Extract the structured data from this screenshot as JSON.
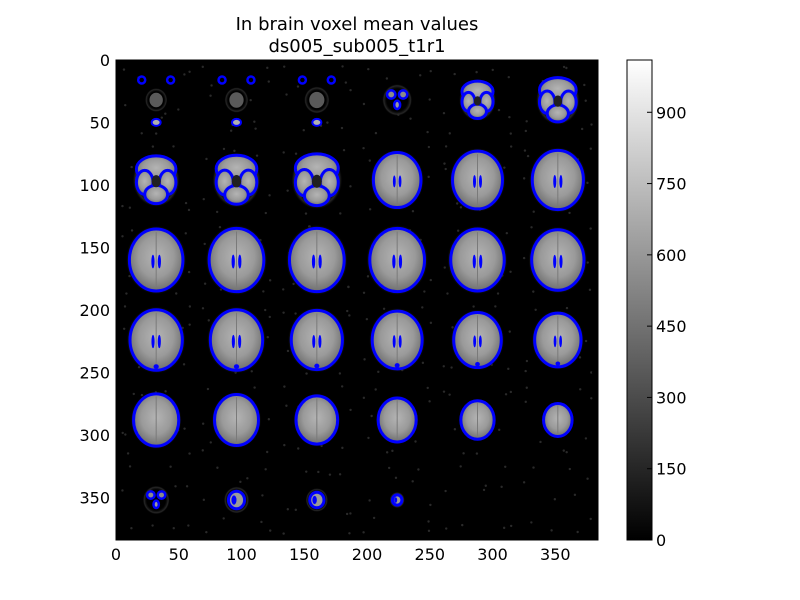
{
  "chart_data": {
    "type": "heatmap",
    "title": "In brain voxel mean values",
    "subtitle": "ds005_sub005_t1r1",
    "xlim": [
      0,
      384
    ],
    "ylim": [
      384,
      0
    ],
    "x_ticks": [
      0,
      50,
      100,
      150,
      200,
      250,
      300,
      350
    ],
    "y_ticks": [
      0,
      50,
      100,
      150,
      200,
      250,
      300,
      350
    ],
    "colormap": "gray",
    "overlay_color": "#0000ff",
    "colorbar": {
      "ticks": [
        0,
        150,
        300,
        450,
        600,
        750,
        900
      ],
      "range": [
        0,
        1010
      ]
    },
    "grid": false,
    "mosaic": {
      "rows": 6,
      "cols": 6,
      "tile_size": 64,
      "slices": [
        {
          "row": 0,
          "col": 0,
          "brain": 0.3
        },
        {
          "row": 0,
          "col": 1,
          "brain": 0.32
        },
        {
          "row": 0,
          "col": 2,
          "brain": 0.34
        },
        {
          "row": 0,
          "col": 3,
          "brain": 0.4
        },
        {
          "row": 0,
          "col": 4,
          "brain": 0.55
        },
        {
          "row": 0,
          "col": 5,
          "brain": 0.65
        },
        {
          "row": 1,
          "col": 0,
          "brain": 0.7
        },
        {
          "row": 1,
          "col": 1,
          "brain": 0.72
        },
        {
          "row": 1,
          "col": 2,
          "brain": 0.76
        },
        {
          "row": 1,
          "col": 3,
          "brain": 0.8
        },
        {
          "row": 1,
          "col": 4,
          "brain": 0.84
        },
        {
          "row": 1,
          "col": 5,
          "brain": 0.86
        },
        {
          "row": 2,
          "col": 0,
          "brain": 0.9
        },
        {
          "row": 2,
          "col": 1,
          "brain": 0.92
        },
        {
          "row": 2,
          "col": 2,
          "brain": 0.92
        },
        {
          "row": 2,
          "col": 3,
          "brain": 0.92
        },
        {
          "row": 2,
          "col": 4,
          "brain": 0.9
        },
        {
          "row": 2,
          "col": 5,
          "brain": 0.88
        },
        {
          "row": 3,
          "col": 0,
          "brain": 0.88
        },
        {
          "row": 3,
          "col": 1,
          "brain": 0.88
        },
        {
          "row": 3,
          "col": 2,
          "brain": 0.86
        },
        {
          "row": 3,
          "col": 3,
          "brain": 0.84
        },
        {
          "row": 3,
          "col": 4,
          "brain": 0.8
        },
        {
          "row": 3,
          "col": 5,
          "brain": 0.78
        },
        {
          "row": 4,
          "col": 0,
          "brain": 0.76
        },
        {
          "row": 4,
          "col": 1,
          "brain": 0.74
        },
        {
          "row": 4,
          "col": 2,
          "brain": 0.7
        },
        {
          "row": 4,
          "col": 3,
          "brain": 0.64
        },
        {
          "row": 4,
          "col": 4,
          "brain": 0.56
        },
        {
          "row": 4,
          "col": 5,
          "brain": 0.48
        },
        {
          "row": 5,
          "col": 0,
          "brain": 0.36
        },
        {
          "row": 5,
          "col": 1,
          "brain": 0.34
        },
        {
          "row": 5,
          "col": 2,
          "brain": 0.3
        },
        {
          "row": 5,
          "col": 3,
          "brain": 0.2
        },
        {
          "row": 5,
          "col": 4,
          "brain": 0.0
        },
        {
          "row": 5,
          "col": 5,
          "brain": 0.0
        }
      ]
    }
  }
}
